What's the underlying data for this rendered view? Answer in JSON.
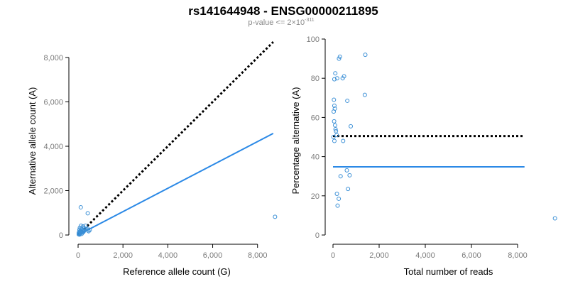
{
  "title": "rs141644948 - ENSG00000211895",
  "subtitle": {
    "prefix": "p-value <= 2",
    "times": "×",
    "base": "10",
    "exponent": "-311"
  },
  "colors": {
    "points": "#3a8fd6",
    "fit": "#2b89e6",
    "reference": "#000000"
  },
  "chart_data": [
    {
      "type": "scatter",
      "xlabel": "Reference allele count (G)",
      "ylabel": "Alternative allele count (A)",
      "xlim": [
        0,
        8800
      ],
      "ylim": [
        0,
        8800
      ],
      "x_ticks": [
        0,
        2000,
        4000,
        6000,
        8000
      ],
      "x_tick_labels": [
        "0",
        "2,000",
        "4,000",
        "6,000",
        "8,000"
      ],
      "y_ticks": [
        0,
        2000,
        4000,
        6000,
        8000
      ],
      "y_tick_labels": [
        "0",
        "2,000",
        "4,000",
        "6,000",
        "8,000"
      ],
      "grid": false,
      "points": [
        [
          120,
          1250
        ],
        [
          430,
          980
        ],
        [
          130,
          420
        ],
        [
          220,
          390
        ],
        [
          330,
          420
        ],
        [
          80,
          330
        ],
        [
          150,
          290
        ],
        [
          280,
          300
        ],
        [
          60,
          240
        ],
        [
          110,
          200
        ],
        [
          190,
          220
        ],
        [
          260,
          180
        ],
        [
          320,
          250
        ],
        [
          380,
          260
        ],
        [
          420,
          290
        ],
        [
          50,
          150
        ],
        [
          90,
          120
        ],
        [
          140,
          160
        ],
        [
          200,
          110
        ],
        [
          240,
          140
        ],
        [
          30,
          90
        ],
        [
          70,
          60
        ],
        [
          110,
          80
        ],
        [
          160,
          50
        ],
        [
          30,
          30
        ],
        [
          60,
          20
        ],
        [
          470,
          170
        ],
        [
          520,
          230
        ],
        [
          450,
          210
        ],
        [
          8780,
          820
        ]
      ],
      "reference_line": {
        "x": [
          0,
          8700
        ],
        "y": [
          0,
          8700
        ],
        "style": "dotted"
      },
      "fit_line": {
        "x": [
          0,
          8700
        ],
        "y": [
          0,
          4580
        ],
        "style": "solid"
      }
    },
    {
      "type": "scatter",
      "xlabel": "Total number of reads",
      "ylabel": "Percentage alternative (A)",
      "xlim": [
        0,
        10000
      ],
      "ylim": [
        0,
        100
      ],
      "x_ticks": [
        0,
        2000,
        4000,
        6000,
        8000
      ],
      "x_tick_labels": [
        "0",
        "2,000",
        "4,000",
        "6,000",
        "8,000"
      ],
      "y_ticks": [
        0,
        20,
        40,
        60,
        80,
        100
      ],
      "y_tick_labels": [
        "0",
        "20",
        "40",
        "60",
        "80",
        "100"
      ],
      "grid": false,
      "points": [
        [
          260,
          90
        ],
        [
          300,
          91
        ],
        [
          1400,
          92
        ],
        [
          1380,
          71.5
        ],
        [
          100,
          82.5
        ],
        [
          480,
          81
        ],
        [
          420,
          80
        ],
        [
          60,
          79.5
        ],
        [
          180,
          80
        ],
        [
          620,
          68.5
        ],
        [
          40,
          69
        ],
        [
          60,
          66
        ],
        [
          80,
          64.5
        ],
        [
          30,
          63
        ],
        [
          50,
          58
        ],
        [
          90,
          56
        ],
        [
          110,
          54
        ],
        [
          130,
          53
        ],
        [
          770,
          55.5
        ],
        [
          20,
          50
        ],
        [
          60,
          48
        ],
        [
          440,
          48
        ],
        [
          160,
          51
        ],
        [
          600,
          33
        ],
        [
          720,
          30.5
        ],
        [
          330,
          30
        ],
        [
          650,
          23.5
        ],
        [
          170,
          21
        ],
        [
          250,
          18.5
        ],
        [
          200,
          15
        ],
        [
          9620,
          8.5
        ]
      ],
      "reference_line": {
        "x": [
          0,
          8300
        ],
        "y": [
          50.5,
          50.5
        ],
        "style": "dotted"
      },
      "fit_line": {
        "x": [
          0,
          8300
        ],
        "y": [
          34.8,
          34.8
        ],
        "style": "solid"
      }
    }
  ]
}
